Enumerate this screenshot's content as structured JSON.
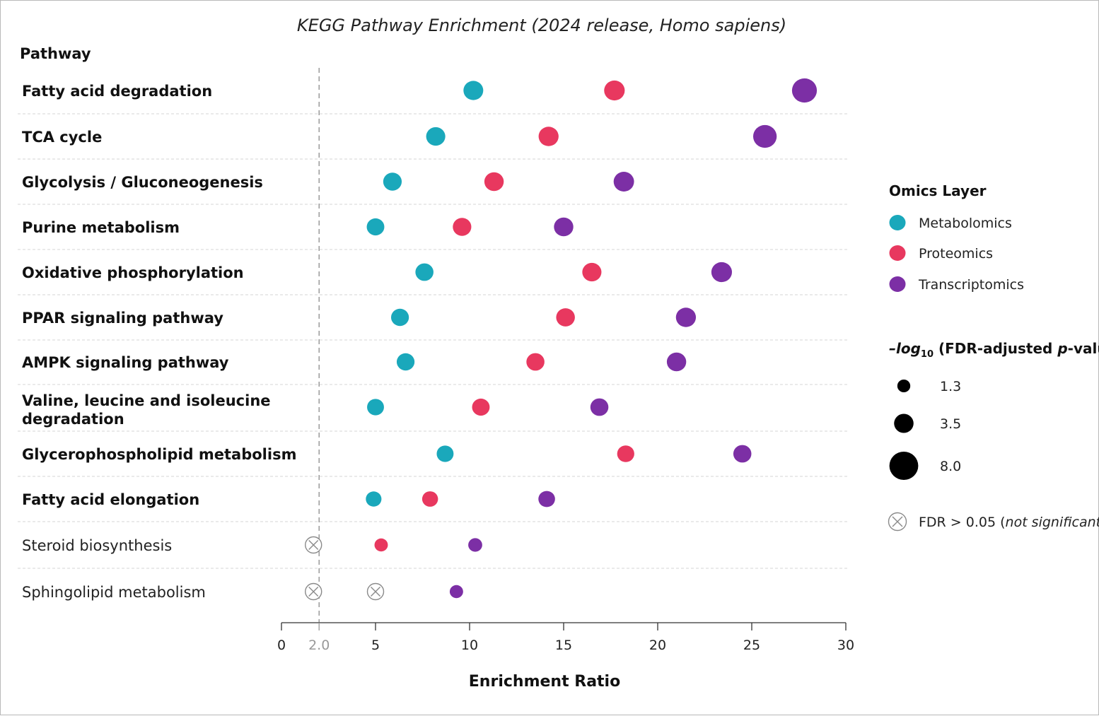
{
  "chart_data": {
    "type": "scatter",
    "title": "KEGG Pathway Enrichment (2024 release, Homo sapiens)",
    "ylabel": "Pathway",
    "xlabel": "Enrichment Ratio",
    "xlim": [
      0,
      30
    ],
    "xticks": [
      0,
      5,
      10,
      15,
      20,
      25,
      30
    ],
    "reference_line": {
      "x": 2.0,
      "label": "2.0"
    },
    "grid": "horizontal dashed",
    "categories": [
      "Fatty acid degradation",
      "TCA cycle",
      "Glycolysis / Gluconeogenesis",
      "Purine metabolism",
      "Oxidative phosphorylation",
      "PPAR signaling pathway",
      "AMPK signaling pathway",
      "Valine, leucine and isoleucine degradation",
      "Glycerophospholipid metabolism",
      "Fatty acid elongation",
      "Steroid biosynthesis",
      "Sphingolipid metabolism"
    ],
    "bold_categories": [
      true,
      true,
      true,
      true,
      true,
      true,
      true,
      true,
      true,
      true,
      false,
      false
    ],
    "series": [
      {
        "name": "Metabolomics",
        "color": "#1aa8bb",
        "points": [
          {
            "x": 10.2,
            "size": 4.8
          },
          {
            "x": 8.2,
            "size": 4.5
          },
          {
            "x": 5.9,
            "size": 4.2
          },
          {
            "x": 5.0,
            "size": 3.8
          },
          {
            "x": 7.6,
            "size": 4.0
          },
          {
            "x": 6.3,
            "size": 3.9
          },
          {
            "x": 6.6,
            "size": 3.9
          },
          {
            "x": 5.0,
            "size": 3.5
          },
          {
            "x": 8.7,
            "size": 3.5
          },
          {
            "x": 4.9,
            "size": 3.0
          },
          {
            "x": 1.7,
            "size": null,
            "significant": false
          },
          {
            "x": 5.0,
            "size": null,
            "significant": false
          }
        ]
      },
      {
        "name": "Proteomics",
        "color": "#e8385f",
        "points": [
          {
            "x": 17.7,
            "size": 5.2
          },
          {
            "x": 14.2,
            "size": 4.9
          },
          {
            "x": 11.3,
            "size": 4.6
          },
          {
            "x": 9.6,
            "size": 4.2
          },
          {
            "x": 16.5,
            "size": 4.5
          },
          {
            "x": 15.1,
            "size": 4.3
          },
          {
            "x": 13.5,
            "size": 4.0
          },
          {
            "x": 10.6,
            "size": 3.8
          },
          {
            "x": 18.3,
            "size": 3.6
          },
          {
            "x": 7.9,
            "size": 3.1
          },
          {
            "x": 5.3,
            "size": 2.2
          },
          {
            "x": 1.7,
            "size": null,
            "significant": false
          }
        ]
      },
      {
        "name": "Transcriptomics",
        "color": "#7c2fa5",
        "points": [
          {
            "x": 27.8,
            "size": 7.6
          },
          {
            "x": 25.7,
            "size": 6.8
          },
          {
            "x": 18.2,
            "size": 5.1
          },
          {
            "x": 15.0,
            "size": 4.6
          },
          {
            "x": 23.4,
            "size": 5.2
          },
          {
            "x": 21.5,
            "size": 4.9
          },
          {
            "x": 21.0,
            "size": 4.6
          },
          {
            "x": 16.9,
            "size": 4.0
          },
          {
            "x": 24.5,
            "size": 4.0
          },
          {
            "x": 14.1,
            "size": 3.4
          },
          {
            "x": 10.3,
            "size": 2.4
          },
          {
            "x": 9.3,
            "size": 2.2
          }
        ]
      }
    ],
    "legend": {
      "placement": "right",
      "color_title": "Omics Layer",
      "size_title_parts": [
        "–log",
        "10",
        " (FDR-adjusted ",
        "p",
        "-value)"
      ],
      "size_values": [
        1.3,
        3.5,
        8.0
      ],
      "size_labels": [
        "1.3",
        "3.5",
        "8.0"
      ],
      "ns_label_prefix": "FDR > 0.05 (",
      "ns_label_italic": "not significant",
      "ns_label_suffix": ")"
    }
  }
}
